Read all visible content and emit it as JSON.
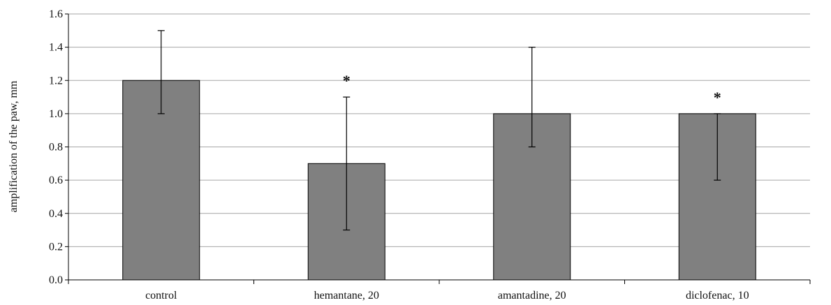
{
  "chart_data": {
    "type": "bar",
    "title": "",
    "xlabel": "",
    "ylabel": "amplification of the paw, mm",
    "categories": [
      "control",
      "hemantane, 20",
      "amantadine, 20",
      "diclofenac, 10"
    ],
    "values": [
      1.2,
      0.7,
      1.0,
      1.0
    ],
    "error_low": [
      1.0,
      0.3,
      0.8,
      0.6
    ],
    "error_high": [
      1.5,
      1.1,
      1.4,
      1.0
    ],
    "annotations": [
      "",
      "*",
      "",
      "*"
    ],
    "ylim": [
      0,
      1.6
    ],
    "yticks": [
      "0.0",
      "0.2",
      "0.4",
      "0.6",
      "0.8",
      "1.0",
      "1.2",
      "1.4",
      "1.6"
    ],
    "grid": true,
    "legend": "none",
    "bar_color": "#808080",
    "bar_edge_color": "#000000",
    "grid_color": "#a6a6a6"
  }
}
